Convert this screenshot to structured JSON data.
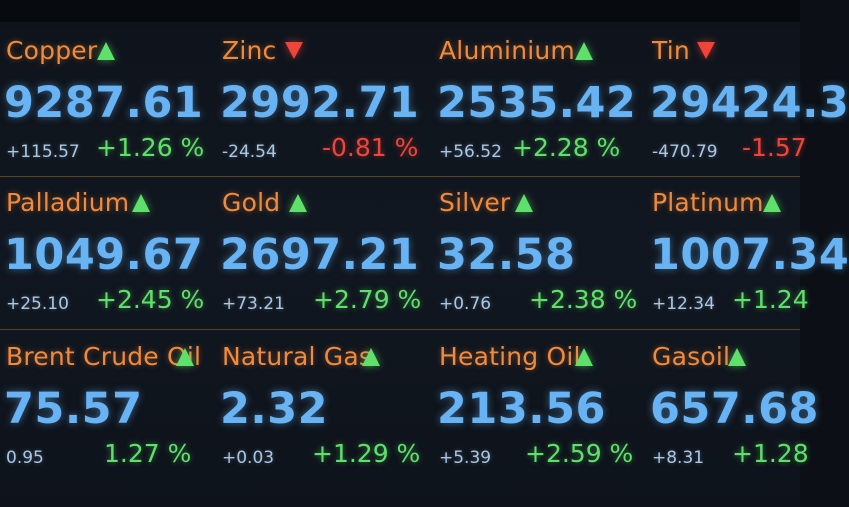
{
  "colors": {
    "name": "#f08a3c",
    "price": "#67b3f4",
    "up": "#5fe06a",
    "down": "#f04438",
    "background": "#111720"
  },
  "rows": [
    {
      "tickers": [
        {
          "name": "Copper",
          "direction": "up",
          "arrow_icon": "triangle-up-icon",
          "price": "9287.61",
          "change": "+115.57",
          "percent": "+1.26 %"
        },
        {
          "name": "Zinc",
          "direction": "down",
          "arrow_icon": "triangle-down-icon",
          "price": "2992.71",
          "change": "-24.54",
          "percent": "-0.81 %"
        },
        {
          "name": "Aluminium",
          "direction": "up",
          "arrow_icon": "triangle-up-icon",
          "price": "2535.42",
          "change": "+56.52",
          "percent": "+2.28 %"
        },
        {
          "name": "Tin",
          "direction": "down",
          "arrow_icon": "triangle-down-icon",
          "price": "29424.3",
          "change": "-470.79",
          "percent": "-1.57"
        }
      ]
    },
    {
      "tickers": [
        {
          "name": "Palladium",
          "direction": "up",
          "arrow_icon": "triangle-up-icon",
          "price": "1049.67",
          "change": "+25.10",
          "percent": "+2.45 %"
        },
        {
          "name": "Gold",
          "direction": "up",
          "arrow_icon": "triangle-up-icon",
          "price": "2697.21",
          "change": "+73.21",
          "percent": "+2.79 %"
        },
        {
          "name": "Silver",
          "direction": "up",
          "arrow_icon": "triangle-up-icon",
          "price": "32.58",
          "change": "+0.76",
          "percent": "+2.38 %"
        },
        {
          "name": "Platinum",
          "direction": "up",
          "arrow_icon": "triangle-up-icon",
          "price": "1007.34",
          "change": "+12.34",
          "percent": "+1.24"
        }
      ]
    },
    {
      "tickers": [
        {
          "name": "Brent Crude Oil",
          "direction": "up",
          "arrow_icon": "triangle-up-icon",
          "price": "75.57",
          "change": "0.95",
          "percent": "1.27 %"
        },
        {
          "name": "Natural Gas",
          "direction": "up",
          "arrow_icon": "triangle-up-icon",
          "price": "2.32",
          "change": "+0.03",
          "percent": "+1.29 %"
        },
        {
          "name": "Heating Oil",
          "direction": "up",
          "arrow_icon": "triangle-up-icon",
          "price": "213.56",
          "change": "+5.39",
          "percent": "+2.59 %"
        },
        {
          "name": "Gasoil",
          "direction": "up",
          "arrow_icon": "triangle-up-icon",
          "price": "657.68",
          "change": "+8.31",
          "percent": "+1.28"
        }
      ]
    }
  ]
}
